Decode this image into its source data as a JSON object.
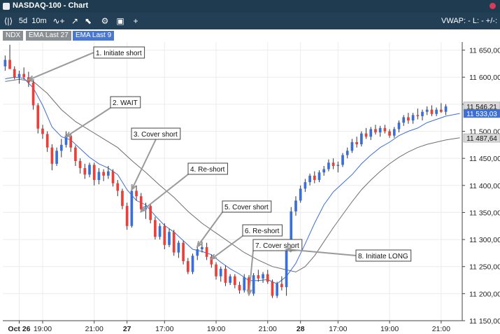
{
  "window": {
    "title": "NASDAQ-100 - Chart"
  },
  "toolbar": {
    "items": [
      {
        "label": "⟨|⟩",
        "icon": "candles-icon"
      },
      {
        "label": "5d"
      },
      {
        "label": "10m"
      },
      {
        "label": "∿+",
        "icon": "indicator-add-icon"
      },
      {
        "label": "↗",
        "icon": "draw-line-icon"
      },
      {
        "label": "⬉",
        "icon": "cursor-icon"
      },
      {
        "label": "⚙",
        "icon": "gear-icon"
      },
      {
        "label": "▣",
        "icon": "layout-icon"
      },
      {
        "label": "+",
        "icon": "add-icon"
      }
    ],
    "vwap": "VWAP: -  L: -  +/-:"
  },
  "legend": [
    {
      "label": "NDX",
      "color": "#8a8f94"
    },
    {
      "label": "EMA Last 27",
      "color": "#8a8f94"
    },
    {
      "label": "EMA Last 9",
      "color": "#4a78d0"
    }
  ],
  "chart_data": {
    "type": "candlestick",
    "instrument": "NDX",
    "colors": {
      "up": "#3a6fd8",
      "down": "#e8413a",
      "ema9": "#3c6fd6",
      "ema27": "#6e6e6e"
    },
    "y_axis": {
      "ylim": [
        11150,
        11665
      ],
      "ticks": [
        11150,
        11200,
        11250,
        11300,
        11350,
        11400,
        11450,
        11500,
        11550,
        11600,
        11650
      ],
      "tick_labels": [
        "11 150,00",
        "11 200,00",
        "11 250,00",
        "11 300,00",
        "11 350,00",
        "11 400,00",
        "11 450,00",
        "11 500,00",
        "11 550,00",
        "11 600,00",
        "11 650,00"
      ]
    },
    "x_axis": {
      "n_bars": 98,
      "ticks": [
        {
          "i": 3,
          "label": "Oct 26",
          "bold": true
        },
        {
          "i": 8,
          "label": "19:00",
          "bold": false
        },
        {
          "i": 19,
          "label": "21:00",
          "bold": false
        },
        {
          "i": 26,
          "label": "27",
          "bold": true
        },
        {
          "i": 34,
          "label": "17:00",
          "bold": false
        },
        {
          "i": 45,
          "label": "19:00",
          "bold": false
        },
        {
          "i": 56,
          "label": "21:00",
          "bold": false
        },
        {
          "i": 63,
          "label": "28",
          "bold": true
        },
        {
          "i": 71,
          "label": "17:00",
          "bold": false
        },
        {
          "i": 82,
          "label": "19:00",
          "bold": false
        },
        {
          "i": 93,
          "label": "21:00",
          "bold": false
        }
      ]
    },
    "price_labels": [
      {
        "value": 11546.21,
        "label": "11 546,21",
        "color": "#d9d9d9",
        "text_color": "#111111"
      },
      {
        "value": 11533.03,
        "label": "11 533,03",
        "color": "#3c6fd6",
        "text_color": "#ffffff"
      },
      {
        "value": 11487.64,
        "label": "11 487,64",
        "color": "#d9d9d9",
        "text_color": "#111111"
      }
    ],
    "candles": [
      [
        11620,
        11640,
        11612,
        11632
      ],
      [
        11632,
        11660,
        11618,
        11615
      ],
      [
        11615,
        11620,
        11596,
        11600
      ],
      [
        11600,
        11612,
        11588,
        11606
      ],
      [
        11606,
        11618,
        11596,
        11600
      ],
      [
        11600,
        11610,
        11582,
        11590
      ],
      [
        11590,
        11594,
        11540,
        11548
      ],
      [
        11548,
        11552,
        11496,
        11505
      ],
      [
        11505,
        11512,
        11486,
        11495
      ],
      [
        11495,
        11500,
        11462,
        11470
      ],
      [
        11470,
        11476,
        11428,
        11440
      ],
      [
        11440,
        11470,
        11436,
        11464
      ],
      [
        11464,
        11486,
        11452,
        11475
      ],
      [
        11475,
        11500,
        11470,
        11492
      ],
      [
        11492,
        11496,
        11462,
        11470
      ],
      [
        11470,
        11474,
        11436,
        11445
      ],
      [
        11445,
        11450,
        11422,
        11432
      ],
      [
        11432,
        11440,
        11412,
        11420
      ],
      [
        11420,
        11442,
        11415,
        11438
      ],
      [
        11438,
        11442,
        11400,
        11410
      ],
      [
        11410,
        11432,
        11402,
        11425
      ],
      [
        11425,
        11430,
        11408,
        11418
      ],
      [
        11418,
        11436,
        11412,
        11426
      ],
      [
        11426,
        11430,
        11398,
        11404
      ],
      [
        11404,
        11410,
        11380,
        11390
      ],
      [
        11390,
        11394,
        11356,
        11362
      ],
      [
        11362,
        11368,
        11318,
        11325
      ],
      [
        11325,
        11396,
        11322,
        11390
      ],
      [
        11390,
        11400,
        11372,
        11380
      ],
      [
        11380,
        11386,
        11350,
        11356
      ],
      [
        11356,
        11368,
        11338,
        11362
      ],
      [
        11362,
        11366,
        11330,
        11336
      ],
      [
        11336,
        11342,
        11300,
        11305
      ],
      [
        11305,
        11330,
        11300,
        11325
      ],
      [
        11325,
        11330,
        11282,
        11290
      ],
      [
        11290,
        11320,
        11286,
        11314
      ],
      [
        11314,
        11318,
        11270,
        11276
      ],
      [
        11276,
        11298,
        11266,
        11294
      ],
      [
        11294,
        11298,
        11254,
        11260
      ],
      [
        11260,
        11266,
        11236,
        11240
      ],
      [
        11240,
        11274,
        11236,
        11270
      ],
      [
        11270,
        11286,
        11262,
        11282
      ],
      [
        11282,
        11296,
        11276,
        11286
      ],
      [
        11286,
        11294,
        11262,
        11268
      ],
      [
        11268,
        11272,
        11248,
        11254
      ],
      [
        11254,
        11258,
        11226,
        11232
      ],
      [
        11232,
        11250,
        11222,
        11246
      ],
      [
        11246,
        11252,
        11214,
        11220
      ],
      [
        11220,
        11236,
        11216,
        11232
      ],
      [
        11232,
        11236,
        11210,
        11216
      ],
      [
        11216,
        11222,
        11200,
        11206
      ],
      [
        11206,
        11236,
        11202,
        11230
      ],
      [
        11230,
        11234,
        11196,
        11200
      ],
      [
        11200,
        11238,
        11196,
        11234
      ],
      [
        11234,
        11244,
        11222,
        11228
      ],
      [
        11228,
        11240,
        11220,
        11236
      ],
      [
        11236,
        11244,
        11218,
        11222
      ],
      [
        11222,
        11226,
        11192,
        11196
      ],
      [
        11196,
        11222,
        11192,
        11218
      ],
      [
        11218,
        11232,
        11206,
        11212
      ],
      [
        11212,
        11296,
        11196,
        11290
      ],
      [
        11290,
        11360,
        11286,
        11352
      ],
      [
        11352,
        11380,
        11344,
        11372
      ],
      [
        11372,
        11400,
        11368,
        11394
      ],
      [
        11394,
        11412,
        11388,
        11406
      ],
      [
        11406,
        11422,
        11400,
        11418
      ],
      [
        11418,
        11426,
        11404,
        11410
      ],
      [
        11410,
        11428,
        11406,
        11424
      ],
      [
        11424,
        11436,
        11418,
        11430
      ],
      [
        11430,
        11448,
        11426,
        11442
      ],
      [
        11442,
        11450,
        11430,
        11436
      ],
      [
        11436,
        11444,
        11424,
        11438
      ],
      [
        11438,
        11460,
        11434,
        11456
      ],
      [
        11456,
        11470,
        11450,
        11464
      ],
      [
        11464,
        11486,
        11460,
        11480
      ],
      [
        11480,
        11490,
        11470,
        11476
      ],
      [
        11476,
        11500,
        11472,
        11496
      ],
      [
        11496,
        11506,
        11486,
        11490
      ],
      [
        11490,
        11508,
        11484,
        11504
      ],
      [
        11504,
        11512,
        11494,
        11498
      ],
      [
        11498,
        11510,
        11490,
        11506
      ],
      [
        11506,
        11512,
        11496,
        11500
      ],
      [
        11500,
        11504,
        11488,
        11492
      ],
      [
        11492,
        11508,
        11488,
        11504
      ],
      [
        11504,
        11520,
        11498,
        11516
      ],
      [
        11516,
        11530,
        11510,
        11526
      ],
      [
        11526,
        11534,
        11514,
        11520
      ],
      [
        11520,
        11534,
        11514,
        11530
      ],
      [
        11530,
        11542,
        11522,
        11528
      ],
      [
        11528,
        11540,
        11520,
        11536
      ],
      [
        11536,
        11546,
        11530,
        11540
      ],
      [
        11540,
        11548,
        11528,
        11532
      ],
      [
        11532,
        11544,
        11528,
        11540
      ],
      [
        11540,
        11552,
        11534,
        11536
      ],
      [
        11536,
        11550,
        11530,
        11546
      ]
    ],
    "ema9": [
      [
        0,
        11597
      ],
      [
        2,
        11600
      ],
      [
        4,
        11598
      ],
      [
        6,
        11580
      ],
      [
        8,
        11548
      ],
      [
        10,
        11508
      ],
      [
        12,
        11490
      ],
      [
        14,
        11484
      ],
      [
        16,
        11468
      ],
      [
        18,
        11452
      ],
      [
        20,
        11440
      ],
      [
        22,
        11432
      ],
      [
        24,
        11420
      ],
      [
        26,
        11392
      ],
      [
        28,
        11372
      ],
      [
        30,
        11364
      ],
      [
        32,
        11344
      ],
      [
        34,
        11326
      ],
      [
        36,
        11314
      ],
      [
        38,
        11298
      ],
      [
        40,
        11282
      ],
      [
        42,
        11278
      ],
      [
        44,
        11272
      ],
      [
        46,
        11258
      ],
      [
        48,
        11246
      ],
      [
        50,
        11236
      ],
      [
        52,
        11224
      ],
      [
        54,
        11224
      ],
      [
        56,
        11226
      ],
      [
        58,
        11218
      ],
      [
        60,
        11232
      ],
      [
        62,
        11256
      ],
      [
        64,
        11292
      ],
      [
        66,
        11330
      ],
      [
        68,
        11364
      ],
      [
        70,
        11388
      ],
      [
        72,
        11404
      ],
      [
        74,
        11420
      ],
      [
        76,
        11440
      ],
      [
        78,
        11456
      ],
      [
        80,
        11470
      ],
      [
        82,
        11480
      ],
      [
        84,
        11492
      ],
      [
        86,
        11500
      ],
      [
        88,
        11506
      ],
      [
        90,
        11516
      ],
      [
        92,
        11522
      ],
      [
        94,
        11528
      ],
      [
        97,
        11533
      ]
    ],
    "ema27": [
      [
        0,
        11592
      ],
      [
        3,
        11596
      ],
      [
        6,
        11592
      ],
      [
        9,
        11570
      ],
      [
        12,
        11540
      ],
      [
        15,
        11518
      ],
      [
        18,
        11502
      ],
      [
        21,
        11486
      ],
      [
        24,
        11470
      ],
      [
        27,
        11446
      ],
      [
        30,
        11424
      ],
      [
        33,
        11400
      ],
      [
        36,
        11378
      ],
      [
        39,
        11352
      ],
      [
        42,
        11330
      ],
      [
        45,
        11312
      ],
      [
        48,
        11294
      ],
      [
        51,
        11276
      ],
      [
        54,
        11262
      ],
      [
        57,
        11250
      ],
      [
        60,
        11244
      ],
      [
        62,
        11240
      ],
      [
        64,
        11250
      ],
      [
        66,
        11270
      ],
      [
        68,
        11296
      ],
      [
        70,
        11322
      ],
      [
        72,
        11346
      ],
      [
        74,
        11370
      ],
      [
        76,
        11392
      ],
      [
        78,
        11410
      ],
      [
        80,
        11426
      ],
      [
        82,
        11440
      ],
      [
        84,
        11452
      ],
      [
        86,
        11462
      ],
      [
        88,
        11470
      ],
      [
        90,
        11476
      ],
      [
        92,
        11480
      ],
      [
        94,
        11484
      ],
      [
        97,
        11488
      ]
    ],
    "annotations": [
      {
        "text": "1. Initiate short",
        "x": 5,
        "y": 11595
      },
      {
        "text": "2. WAIT",
        "x": 13,
        "y": 11490
      },
      {
        "text": "3. Cover short",
        "x": 27,
        "y": 11392
      },
      {
        "text": "4. Re-short",
        "x": 29,
        "y": 11352
      },
      {
        "text": "5. Cover short",
        "x": 41,
        "y": 11287
      },
      {
        "text": "6. Re-short",
        "x": 44,
        "y": 11264
      },
      {
        "text": "7. Cover short",
        "x": 52,
        "y": 11198
      },
      {
        "text": "8. Initiate LONG",
        "x": 60,
        "y": 11282
      }
    ]
  }
}
